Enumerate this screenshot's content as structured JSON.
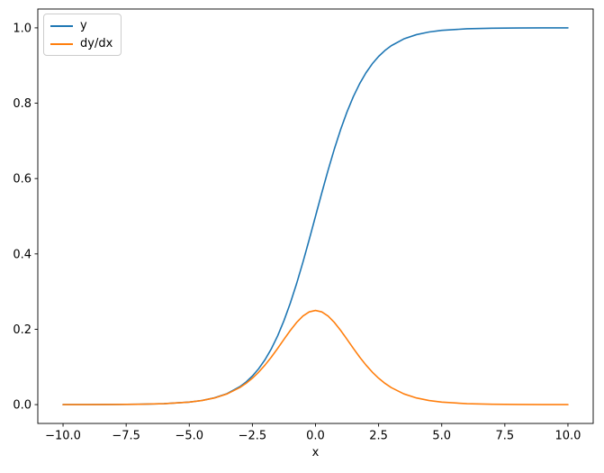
{
  "figure": {
    "background_color": "#ffffff",
    "frame_color": "#000000"
  },
  "chart_data": {
    "type": "line",
    "title": "",
    "xlabel": "x",
    "ylabel": "",
    "grid": false,
    "legend_position": "upper left",
    "xlim": [
      -11,
      11
    ],
    "ylim": [
      -0.05,
      1.05
    ],
    "xticks": [
      -10.0,
      -7.5,
      -5.0,
      -2.5,
      0.0,
      2.5,
      5.0,
      7.5,
      10.0
    ],
    "xtick_labels": [
      "−10.0",
      "−7.5",
      "−5.0",
      "−2.5",
      "0.0",
      "2.5",
      "5.0",
      "7.5",
      "10.0"
    ],
    "yticks": [
      0.0,
      0.2,
      0.4,
      0.6,
      0.8,
      1.0
    ],
    "ytick_labels": [
      "0.0",
      "0.2",
      "0.4",
      "0.6",
      "0.8",
      "1.0"
    ],
    "x": [
      -10,
      -9,
      -8,
      -7,
      -6,
      -5,
      -4.5,
      -4,
      -3.5,
      -3,
      -2.75,
      -2.5,
      -2.25,
      -2,
      -1.75,
      -1.5,
      -1.25,
      -1,
      -0.75,
      -0.5,
      -0.25,
      0,
      0.25,
      0.5,
      0.75,
      1,
      1.25,
      1.5,
      1.75,
      2,
      2.25,
      2.5,
      2.75,
      3,
      3.5,
      4,
      4.5,
      5,
      6,
      7,
      8,
      9,
      10
    ],
    "series": [
      {
        "name": "y",
        "color": "#1f77b4",
        "values": [
          5e-05,
          0.00012,
          0.00034,
          0.00091,
          0.00247,
          0.00669,
          0.011,
          0.018,
          0.02931,
          0.04743,
          0.06009,
          0.07586,
          0.09534,
          0.1192,
          0.14805,
          0.18243,
          0.2227,
          0.26894,
          0.32082,
          0.37754,
          0.43782,
          0.5,
          0.56218,
          0.62246,
          0.67918,
          0.73106,
          0.7773,
          0.81757,
          0.85195,
          0.8808,
          0.90466,
          0.92414,
          0.93991,
          0.95257,
          0.97069,
          0.982,
          0.989,
          0.99331,
          0.99753,
          0.99909,
          0.99966,
          0.99988,
          0.99995
        ]
      },
      {
        "name": "dy/dx",
        "color": "#ff7f0e",
        "values": [
          5e-05,
          0.00012,
          0.00034,
          0.00091,
          0.00246,
          0.00665,
          0.01088,
          0.01767,
          0.02845,
          0.04518,
          0.05648,
          0.0701,
          0.08625,
          0.10499,
          0.12613,
          0.14914,
          0.1731,
          0.19661,
          0.2179,
          0.235,
          0.24613,
          0.25,
          0.24613,
          0.235,
          0.2179,
          0.19661,
          0.1731,
          0.14914,
          0.12613,
          0.10499,
          0.08625,
          0.0701,
          0.05648,
          0.04518,
          0.02845,
          0.01767,
          0.01088,
          0.00665,
          0.00246,
          0.00091,
          0.00034,
          0.00012,
          5e-05
        ]
      }
    ]
  }
}
